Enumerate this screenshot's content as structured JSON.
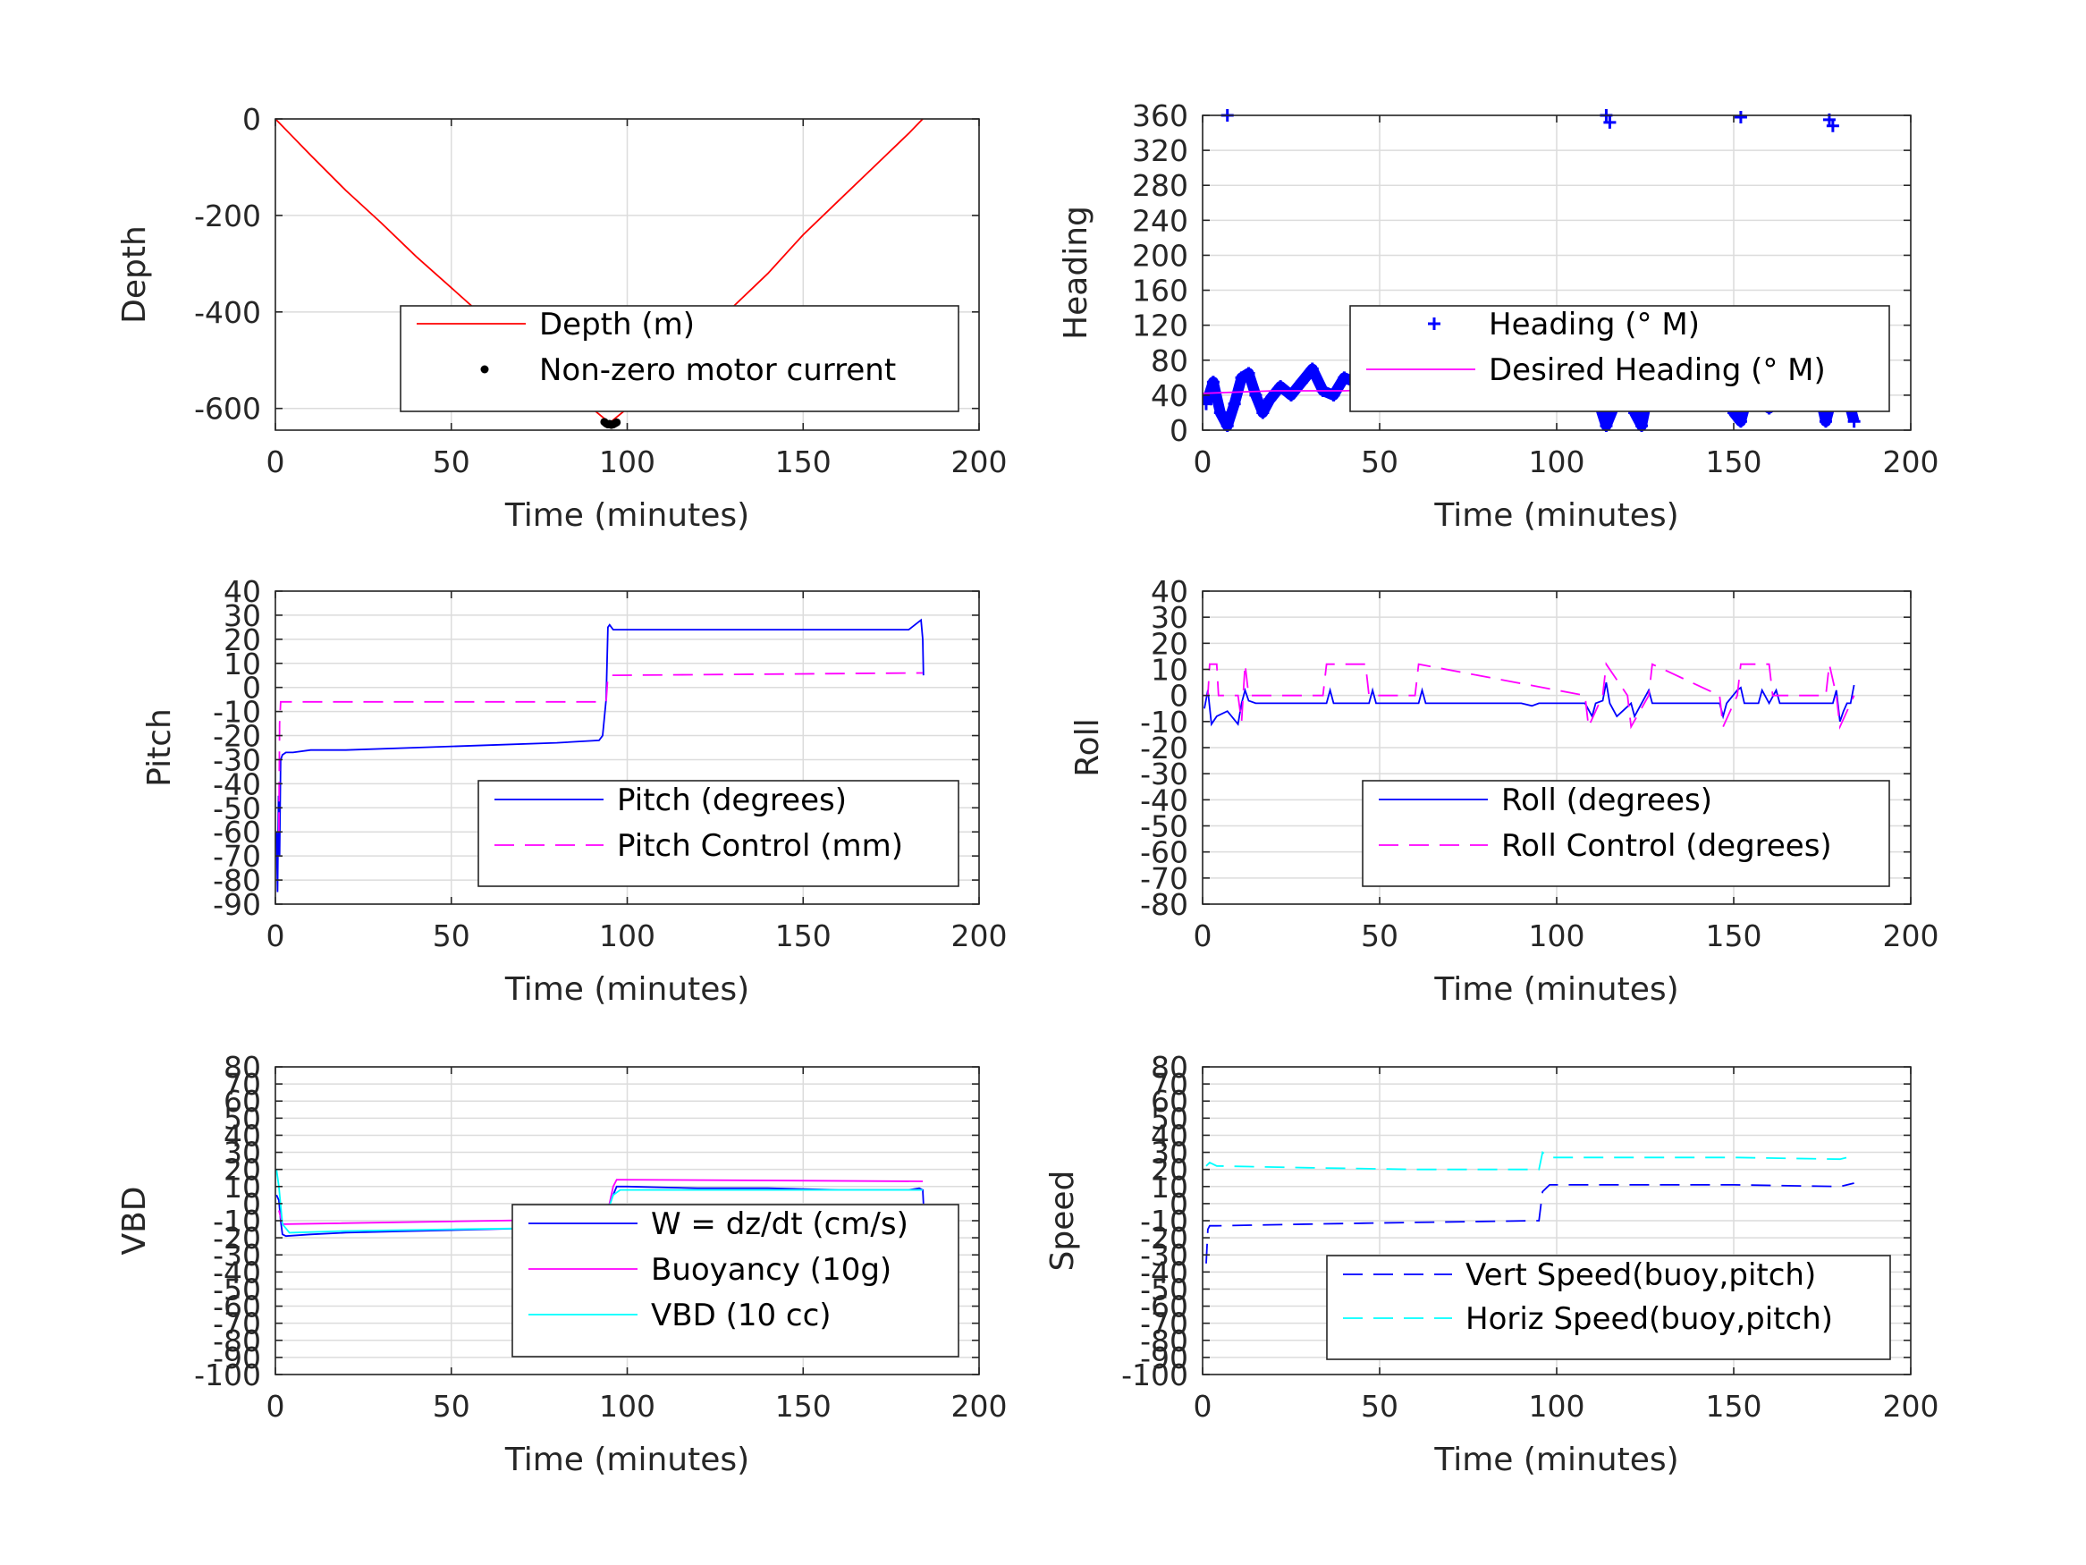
{
  "chart_data": [
    {
      "type": "line",
      "xlabel": "Time (minutes)",
      "ylabel": "Depth",
      "xlim": [
        0,
        200
      ],
      "ylim": [
        -645,
        0
      ],
      "xticks": [
        0,
        50,
        100,
        150,
        200
      ],
      "yticks": [
        0,
        -200,
        -400,
        -600
      ],
      "grid": true,
      "legend_placement": "lower-right",
      "series": [
        {
          "name": "Depth (m)",
          "style": "solid",
          "color": "#ff0000",
          "x": [
            0,
            10,
            20,
            30,
            40,
            50,
            60,
            70,
            80,
            90,
            95,
            100,
            110,
            120,
            130,
            140,
            150,
            160,
            170,
            180,
            184
          ],
          "y": [
            0,
            -75,
            -148,
            -215,
            -285,
            -350,
            -415,
            -478,
            -538,
            -600,
            -630,
            -600,
            -528,
            -460,
            -390,
            -320,
            -240,
            -170,
            -100,
            -30,
            0
          ]
        },
        {
          "name": "Non-zero motor current",
          "style": "dots",
          "color": "#000000",
          "x": [
            93.5,
            94,
            94.5,
            95,
            95.5,
            96,
            96.5,
            97
          ],
          "y": [
            -628,
            -631,
            -633,
            -632,
            -634,
            -633,
            -631,
            -629
          ]
        }
      ]
    },
    {
      "type": "scatter",
      "xlabel": "Time (minutes)",
      "ylabel": "Heading",
      "xlim": [
        0,
        200
      ],
      "ylim": [
        0,
        360
      ],
      "xticks": [
        0,
        50,
        100,
        150,
        200
      ],
      "yticks": [
        0,
        40,
        80,
        120,
        160,
        200,
        240,
        280,
        320,
        360
      ],
      "grid": true,
      "legend_placement": "center-right",
      "series": [
        {
          "name": "Heading (° M)",
          "style": "markers",
          "color": "#0000ff",
          "x": [
            1,
            3,
            5,
            7,
            9,
            11,
            13,
            15,
            17,
            19,
            22,
            25,
            28,
            31,
            34,
            37,
            40,
            43,
            46,
            49,
            52,
            55,
            58,
            61,
            64,
            67,
            70,
            73,
            76,
            80,
            84,
            88,
            92,
            96,
            100,
            104,
            108,
            110,
            112,
            114,
            116,
            118,
            120,
            122,
            124,
            126,
            128,
            131,
            134,
            137,
            140,
            143,
            146,
            148,
            150,
            152,
            154,
            156,
            158,
            160,
            162,
            164,
            166,
            168,
            170,
            172,
            174,
            176,
            178,
            180,
            182,
            183,
            184,
            7,
            114,
            115,
            152,
            177,
            178
          ],
          "y": [
            30,
            55,
            20,
            5,
            30,
            60,
            65,
            40,
            20,
            35,
            50,
            40,
            55,
            70,
            45,
            40,
            60,
            55,
            50,
            65,
            70,
            55,
            40,
            45,
            50,
            55,
            50,
            45,
            50,
            55,
            48,
            45,
            50,
            52,
            48,
            50,
            55,
            60,
            30,
            5,
            25,
            60,
            40,
            20,
            5,
            45,
            60,
            30,
            50,
            65,
            45,
            60,
            70,
            50,
            20,
            10,
            40,
            75,
            55,
            25,
            45,
            65,
            40,
            50,
            35,
            60,
            45,
            10,
            40,
            75,
            55,
            25,
            10,
            360,
            360,
            352,
            358,
            355,
            348
          ]
        },
        {
          "name": "Desired Heading (° M)",
          "style": "solid",
          "color": "#ff00ff",
          "x": [
            0,
            20,
            40,
            60,
            80,
            100,
            120,
            140,
            160,
            184
          ],
          "y": [
            42,
            45,
            45,
            48,
            50,
            50,
            52,
            52,
            50,
            45
          ]
        }
      ]
    },
    {
      "type": "line",
      "xlabel": "Time (minutes)",
      "ylabel": "Pitch",
      "xlim": [
        0,
        200
      ],
      "ylim": [
        -90,
        40
      ],
      "xticks": [
        0,
        50,
        100,
        150,
        200
      ],
      "yticks": [
        40,
        30,
        20,
        10,
        0,
        -10,
        -20,
        -30,
        -40,
        -50,
        -60,
        -70,
        -80,
        -90
      ],
      "grid": true,
      "legend_placement": "lower-right",
      "series": [
        {
          "name": "Pitch (degrees)",
          "style": "solid",
          "color": "#0000ff",
          "x": [
            0.3,
            0.6,
            0.9,
            1.2,
            1.5,
            2,
            3,
            5,
            10,
            20,
            40,
            60,
            80,
            92,
            93,
            94,
            94.5,
            95,
            96,
            100,
            120,
            140,
            160,
            180,
            183.5,
            184,
            184.2
          ],
          "y": [
            -60,
            -85,
            -45,
            -70,
            -30,
            -28,
            -27,
            -27,
            -26,
            -26,
            -25,
            -24,
            -23,
            -22,
            -20,
            -5,
            25,
            26,
            24,
            24,
            24,
            24,
            24,
            24,
            28,
            20,
            5
          ]
        },
        {
          "name": "Pitch Control (mm)",
          "style": "dashed",
          "color": "#ff00ff",
          "x": [
            1,
            1.2,
            1.5,
            2,
            94,
            94.5,
            184
          ],
          "y": [
            -60,
            -15,
            -6,
            -6,
            -6,
            5,
            6
          ]
        }
      ]
    },
    {
      "type": "line",
      "xlabel": "Time (minutes)",
      "ylabel": "Roll",
      "xlim": [
        0,
        200
      ],
      "ylim": [
        -80,
        40
      ],
      "xticks": [
        0,
        50,
        100,
        150,
        200
      ],
      "yticks": [
        40,
        30,
        20,
        10,
        0,
        -10,
        -20,
        -30,
        -40,
        -50,
        -60,
        -70,
        -80
      ],
      "grid": true,
      "legend_placement": "lower-right",
      "series": [
        {
          "name": "Roll (degrees)",
          "style": "solid",
          "color": "#0000ff",
          "x": [
            0.5,
            1.5,
            2.5,
            4,
            7,
            10,
            11,
            12,
            13,
            15,
            35,
            36,
            37,
            47,
            48,
            49,
            61,
            62,
            63,
            70,
            90,
            93,
            95,
            108,
            110,
            111,
            113,
            114,
            115,
            117,
            121,
            122,
            124,
            126,
            127,
            130,
            146,
            147,
            148,
            151,
            152,
            153,
            157,
            158,
            160,
            162,
            163,
            170,
            178,
            179,
            180,
            181,
            182,
            183,
            184
          ],
          "y": [
            -5,
            2,
            -11,
            -8,
            -6,
            -11,
            -3,
            2,
            -2,
            -3,
            -3,
            2,
            -3,
            -3,
            2,
            -3,
            -3,
            2,
            -3,
            -3,
            -3,
            -4,
            -3,
            -3,
            -8,
            -3,
            -2,
            5,
            -3,
            -8,
            -3,
            -8,
            -3,
            2,
            -3,
            -3,
            -3,
            -8,
            -3,
            2,
            3,
            -3,
            -3,
            2,
            -3,
            2,
            -3,
            -3,
            -3,
            2,
            -10,
            -6,
            -3,
            -3,
            4
          ]
        },
        {
          "name": "Roll Control (degrees)",
          "style": "dashed",
          "color": "#ff00ff",
          "x": [
            0,
            1.5,
            2,
            4,
            4.5,
            10,
            11,
            12,
            13,
            34,
            35,
            46,
            47,
            60,
            61,
            108,
            109,
            113,
            114,
            120,
            121,
            126,
            127,
            146,
            147,
            151,
            152,
            160,
            161,
            176,
            177,
            179,
            180,
            184
          ],
          "y": [
            0,
            0,
            12,
            12,
            0,
            0,
            -10,
            12,
            0,
            0,
            12,
            12,
            0,
            0,
            12,
            0,
            -12,
            0,
            12,
            0,
            -12,
            0,
            12,
            0,
            -12,
            0,
            12,
            12,
            0,
            0,
            12,
            0,
            -12,
            0
          ]
        }
      ]
    },
    {
      "type": "line",
      "xlabel": "Time (minutes)",
      "ylabel": "VBD",
      "xlim": [
        0,
        200
      ],
      "ylim": [
        -100,
        80
      ],
      "xticks": [
        0,
        50,
        100,
        150,
        200
      ],
      "yticks": [
        80,
        70,
        60,
        50,
        40,
        30,
        20,
        10,
        0,
        -10,
        -20,
        -30,
        -40,
        -50,
        -60,
        -70,
        -80,
        -90,
        -100
      ],
      "grid": true,
      "legend_placement": "lower-right",
      "series": [
        {
          "name": "W = dz/dt (cm/s)",
          "style": "solid",
          "color": "#0000ff",
          "x": [
            0.3,
            1,
            1.5,
            2,
            3,
            10,
            20,
            40,
            60,
            80,
            92,
            93,
            95,
            97,
            100,
            120,
            140,
            160,
            180,
            183,
            184,
            184.2
          ],
          "y": [
            5,
            2,
            -10,
            -18,
            -19,
            -18,
            -17,
            -16,
            -15,
            -14,
            -14,
            -12,
            0,
            10,
            10,
            9,
            9,
            8,
            8,
            9,
            8,
            0
          ]
        },
        {
          "name": "Buoyancy (10g)",
          "style": "solid",
          "color": "#ff00ff",
          "x": [
            1,
            2,
            3,
            93,
            94,
            96,
            97,
            184
          ],
          "y": [
            -4,
            -12,
            -12,
            -9,
            -9,
            10,
            14,
            13
          ]
        },
        {
          "name": "VBD (10 cc)",
          "style": "solid",
          "color": "#00ffff",
          "x": [
            0.3,
            1,
            2,
            4,
            20,
            50,
            90,
            93,
            96,
            98,
            120,
            150,
            184
          ],
          "y": [
            20,
            10,
            -12,
            -17,
            -16,
            -15,
            -14,
            -13,
            5,
            8,
            8,
            8,
            8
          ]
        }
      ]
    },
    {
      "type": "line",
      "xlabel": "Time (minutes)",
      "ylabel": "Speed",
      "xlim": [
        0,
        200
      ],
      "ylim": [
        -100,
        80
      ],
      "xticks": [
        0,
        50,
        100,
        150,
        200
      ],
      "yticks": [
        80,
        70,
        60,
        50,
        40,
        30,
        20,
        10,
        0,
        -10,
        -20,
        -30,
        -40,
        -50,
        -60,
        -70,
        -80,
        -90,
        -100
      ],
      "grid": true,
      "legend_placement": "lower-right",
      "series": [
        {
          "name": "Vert Speed(buoy,pitch)",
          "style": "dashed",
          "color": "#0000ff",
          "x": [
            1,
            1.5,
            2,
            4,
            30,
            60,
            94,
            95,
            96,
            98,
            120,
            150,
            180,
            184
          ],
          "y": [
            -35,
            -15,
            -13,
            -13,
            -12,
            -11,
            -10,
            -10,
            7,
            11,
            11,
            11,
            10,
            12
          ]
        },
        {
          "name": "Horiz Speed(buoy,pitch)",
          "style": "dashed",
          "color": "#00ffff",
          "x": [
            1,
            2,
            4,
            30,
            60,
            94,
            95,
            96,
            98,
            120,
            150,
            180,
            184
          ],
          "y": [
            22,
            24,
            22,
            21,
            20,
            20,
            20,
            30,
            27,
            27,
            27,
            26,
            28
          ]
        }
      ]
    }
  ]
}
